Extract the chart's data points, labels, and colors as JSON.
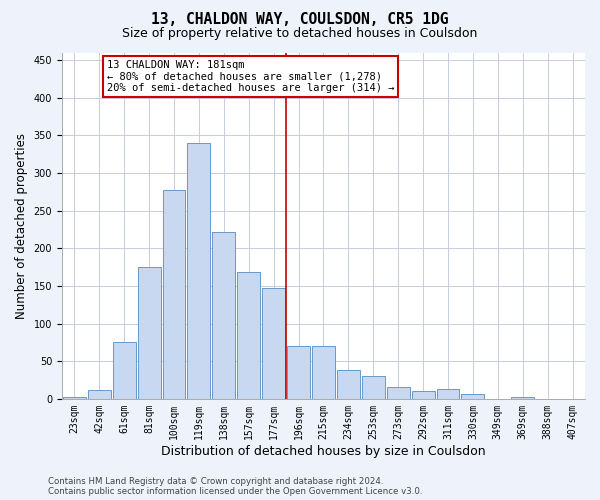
{
  "title": "13, CHALDON WAY, COULSDON, CR5 1DG",
  "subtitle": "Size of property relative to detached houses in Coulsdon",
  "xlabel": "Distribution of detached houses by size in Coulsdon",
  "ylabel": "Number of detached properties",
  "bar_labels": [
    "23sqm",
    "42sqm",
    "61sqm",
    "81sqm",
    "100sqm",
    "119sqm",
    "138sqm",
    "157sqm",
    "177sqm",
    "196sqm",
    "215sqm",
    "234sqm",
    "253sqm",
    "273sqm",
    "292sqm",
    "311sqm",
    "330sqm",
    "349sqm",
    "369sqm",
    "388sqm",
    "407sqm"
  ],
  "bar_heights": [
    3,
    12,
    75,
    175,
    278,
    340,
    222,
    168,
    147,
    70,
    70,
    38,
    30,
    16,
    11,
    13,
    6,
    0,
    3,
    0,
    0
  ],
  "bar_color": "#c8d8f0",
  "bar_edge_color": "#6699cc",
  "bar_edge_width": 0.7,
  "vline_x_index": 8.5,
  "vline_color": "#cc0000",
  "annotation_line1": "13 CHALDON WAY: 181sqm",
  "annotation_line2": "← 80% of detached houses are smaller (1,278)",
  "annotation_line3": "20% of semi-detached houses are larger (314) →",
  "annotation_box_color": "#cc0000",
  "ylim": [
    0,
    460
  ],
  "yticks": [
    0,
    50,
    100,
    150,
    200,
    250,
    300,
    350,
    400,
    450
  ],
  "footer_line1": "Contains HM Land Registry data © Crown copyright and database right 2024.",
  "footer_line2": "Contains public sector information licensed under the Open Government Licence v3.0.",
  "bg_color": "#eef2fb",
  "plot_bg_color": "#ffffff",
  "grid_color": "#c8cce0",
  "title_fontsize": 10.5,
  "subtitle_fontsize": 9,
  "tick_fontsize": 7,
  "ylabel_fontsize": 8.5,
  "xlabel_fontsize": 9,
  "footer_fontsize": 6.2,
  "annotation_fontsize": 7.5
}
